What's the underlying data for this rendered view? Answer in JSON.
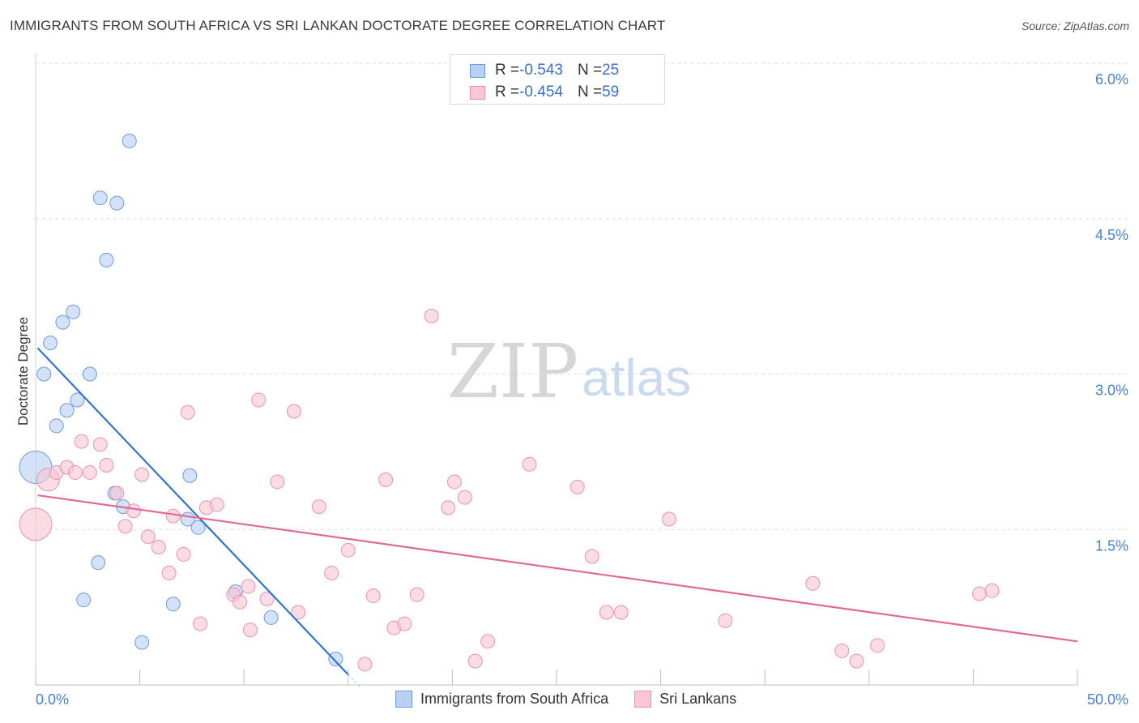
{
  "title": "IMMIGRANTS FROM SOUTH AFRICA VS SRI LANKAN DOCTORATE DEGREE CORRELATION CHART",
  "source": "Source: ZipAtlas.com",
  "watermark": {
    "zip": "ZIP",
    "atlas": "atlas"
  },
  "colors": {
    "blue_fill": "#b8d1f3",
    "blue_stroke": "#6f9ad8",
    "blue_line": "#2f74d0",
    "pink_fill": "#f8c6d5",
    "pink_stroke": "#e893ad",
    "pink_line": "#e06a96",
    "grid": "#dcdcdc",
    "axis_text_blue": "#4a7fd0"
  },
  "legend": {
    "rows": [
      {
        "r_label": "R = ",
        "r_value": "-0.543",
        "n_label": "N = ",
        "n_value": "25"
      },
      {
        "r_label": "R = ",
        "r_value": "-0.454",
        "n_label": "N = ",
        "n_value": "59"
      }
    ]
  },
  "chart_data": {
    "type": "scatter",
    "title": "IMMIGRANTS FROM SOUTH AFRICA VS SRI LANKAN DOCTORATE DEGREE CORRELATION CHART",
    "xlabel": "",
    "ylabel": "Doctorate Degree",
    "xlim": [
      0,
      50
    ],
    "ylim": [
      0,
      6.0
    ],
    "x_tick_labels": [
      "0.0%",
      "50.0%"
    ],
    "y_ticks": [
      1.5,
      3.0,
      4.5,
      6.0
    ],
    "y_tick_labels": [
      "1.5%",
      "3.0%",
      "4.5%",
      "6.0%"
    ],
    "grid": true,
    "series": [
      {
        "name": "Immigrants from South Africa",
        "color": "blue",
        "trend": {
          "x": [
            0.1,
            15.0
          ],
          "y": [
            3.25,
            0.1
          ]
        },
        "points": [
          {
            "x": 4.5,
            "y": 5.25
          },
          {
            "x": 3.1,
            "y": 4.7
          },
          {
            "x": 3.9,
            "y": 4.65
          },
          {
            "x": 3.4,
            "y": 4.1
          },
          {
            "x": 1.8,
            "y": 3.6
          },
          {
            "x": 1.3,
            "y": 3.5
          },
          {
            "x": 0.7,
            "y": 3.3
          },
          {
            "x": 0.4,
            "y": 3.0
          },
          {
            "x": 2.6,
            "y": 3.0
          },
          {
            "x": 2.0,
            "y": 2.75
          },
          {
            "x": 1.5,
            "y": 2.65
          },
          {
            "x": 1.0,
            "y": 2.5
          },
          {
            "x": 0.0,
            "y": 2.1,
            "size": "large"
          },
          {
            "x": 7.4,
            "y": 2.02
          },
          {
            "x": 3.8,
            "y": 1.85
          },
          {
            "x": 4.2,
            "y": 1.72
          },
          {
            "x": 7.3,
            "y": 1.6
          },
          {
            "x": 7.8,
            "y": 1.52
          },
          {
            "x": 3.0,
            "y": 1.18
          },
          {
            "x": 9.6,
            "y": 0.9
          },
          {
            "x": 2.3,
            "y": 0.82
          },
          {
            "x": 6.6,
            "y": 0.78
          },
          {
            "x": 11.3,
            "y": 0.65
          },
          {
            "x": 5.1,
            "y": 0.41
          },
          {
            "x": 14.4,
            "y": 0.25
          }
        ]
      },
      {
        "name": "Sri Lankans",
        "color": "pink",
        "trend": {
          "x": [
            0.1,
            50.0
          ],
          "y": [
            1.83,
            0.42
          ]
        },
        "points": [
          {
            "x": 0.0,
            "y": 1.55,
            "size": "large"
          },
          {
            "x": 0.6,
            "y": 1.98,
            "size": "medium"
          },
          {
            "x": 1.0,
            "y": 2.05
          },
          {
            "x": 1.5,
            "y": 2.1
          },
          {
            "x": 1.9,
            "y": 2.05
          },
          {
            "x": 2.6,
            "y": 2.05
          },
          {
            "x": 2.2,
            "y": 2.35
          },
          {
            "x": 3.1,
            "y": 2.32
          },
          {
            "x": 3.4,
            "y": 2.12
          },
          {
            "x": 5.1,
            "y": 2.03
          },
          {
            "x": 3.9,
            "y": 1.85
          },
          {
            "x": 4.7,
            "y": 1.68
          },
          {
            "x": 4.3,
            "y": 1.53
          },
          {
            "x": 5.4,
            "y": 1.43
          },
          {
            "x": 5.9,
            "y": 1.33
          },
          {
            "x": 6.4,
            "y": 1.08
          },
          {
            "x": 6.6,
            "y": 1.63
          },
          {
            "x": 7.1,
            "y": 1.26
          },
          {
            "x": 7.3,
            "y": 2.63
          },
          {
            "x": 8.2,
            "y": 1.71
          },
          {
            "x": 8.7,
            "y": 1.74
          },
          {
            "x": 7.9,
            "y": 0.59
          },
          {
            "x": 9.5,
            "y": 0.87
          },
          {
            "x": 9.8,
            "y": 0.8
          },
          {
            "x": 10.2,
            "y": 0.95
          },
          {
            "x": 10.3,
            "y": 0.53
          },
          {
            "x": 10.7,
            "y": 2.75
          },
          {
            "x": 11.1,
            "y": 0.83
          },
          {
            "x": 11.6,
            "y": 1.96
          },
          {
            "x": 12.4,
            "y": 2.64
          },
          {
            "x": 12.6,
            "y": 0.7
          },
          {
            "x": 13.6,
            "y": 1.72
          },
          {
            "x": 14.2,
            "y": 1.08
          },
          {
            "x": 15.0,
            "y": 1.3
          },
          {
            "x": 15.8,
            "y": 0.2
          },
          {
            "x": 16.2,
            "y": 0.86
          },
          {
            "x": 16.8,
            "y": 1.98
          },
          {
            "x": 17.2,
            "y": 0.55
          },
          {
            "x": 17.7,
            "y": 0.59
          },
          {
            "x": 18.3,
            "y": 0.87
          },
          {
            "x": 19.0,
            "y": 3.56
          },
          {
            "x": 19.8,
            "y": 1.71
          },
          {
            "x": 20.1,
            "y": 1.96
          },
          {
            "x": 20.6,
            "y": 1.81
          },
          {
            "x": 21.1,
            "y": 0.23
          },
          {
            "x": 21.7,
            "y": 0.42
          },
          {
            "x": 23.7,
            "y": 2.13
          },
          {
            "x": 26.0,
            "y": 1.91
          },
          {
            "x": 26.7,
            "y": 1.24
          },
          {
            "x": 27.4,
            "y": 0.7
          },
          {
            "x": 28.1,
            "y": 0.7
          },
          {
            "x": 30.4,
            "y": 1.6
          },
          {
            "x": 33.1,
            "y": 0.62
          },
          {
            "x": 37.3,
            "y": 0.98
          },
          {
            "x": 38.7,
            "y": 0.33
          },
          {
            "x": 39.4,
            "y": 0.23
          },
          {
            "x": 40.4,
            "y": 0.38
          },
          {
            "x": 45.3,
            "y": 0.88
          },
          {
            "x": 45.9,
            "y": 0.91
          }
        ]
      }
    ]
  }
}
